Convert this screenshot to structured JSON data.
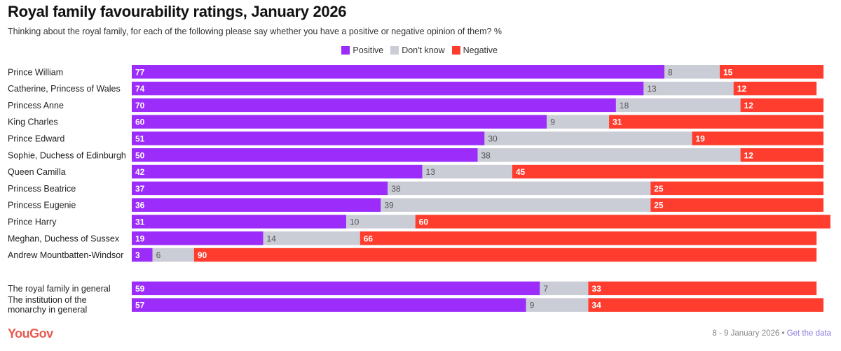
{
  "chart_data": {
    "type": "bar",
    "orientation": "horizontal",
    "stacked": true,
    "title": "Royal family favourability ratings, January 2026",
    "subtitle": "Thinking about the royal family, for each of the following please say whether you have a positive or negative opinion of them? %",
    "legend": {
      "placement": "top-right",
      "entries": [
        "Positive",
        "Don't know",
        "Negative"
      ]
    },
    "colors": {
      "Positive": "#9b2cfa",
      "Don't know": "#cbcdd6",
      "Negative": "#ff3d2e"
    },
    "xlim": [
      0,
      100
    ],
    "grid": false,
    "categories": [
      "Prince William",
      "Catherine, Princess of Wales",
      "Princess Anne",
      "King Charles",
      "Prince Edward",
      "Sophie, Duchess of Edinburgh",
      "Queen Camilla",
      "Princess Beatrice",
      "Princess Eugenie",
      "Prince Harry",
      "Meghan, Duchess of Sussex",
      "Andrew Mountbatten-Windsor",
      "The royal family in general",
      "The institution of the monarchy in general"
    ],
    "group_break_before_index": 12,
    "series": [
      {
        "name": "Positive",
        "values": [
          77,
          74,
          70,
          60,
          51,
          50,
          42,
          37,
          36,
          31,
          19,
          3,
          59,
          57
        ]
      },
      {
        "name": "Don't know",
        "values": [
          8,
          13,
          18,
          9,
          30,
          38,
          13,
          38,
          39,
          10,
          14,
          6,
          7,
          9
        ]
      },
      {
        "name": "Negative",
        "values": [
          15,
          12,
          12,
          31,
          19,
          12,
          45,
          25,
          25,
          60,
          66,
          90,
          33,
          34
        ]
      }
    ]
  },
  "footer": {
    "brand": "YouGov",
    "date": "8 - 9 January 2026",
    "separator": " • ",
    "link": "Get the data"
  }
}
